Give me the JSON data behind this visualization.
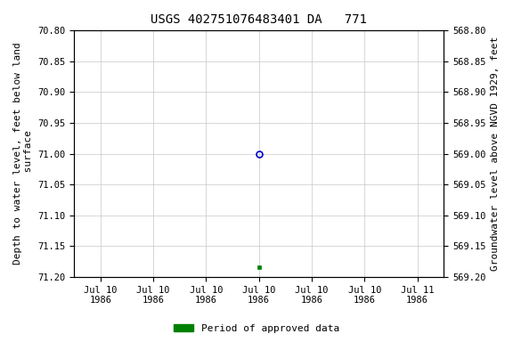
{
  "title": "USGS 402751076483401 DA   771",
  "ylabel_left": "Depth to water level, feet below land\n surface",
  "ylabel_right": "Groundwater level above NGVD 1929, feet",
  "ylim_left": [
    70.8,
    71.2
  ],
  "ylim_right": [
    569.2,
    568.8
  ],
  "yticks_left": [
    70.8,
    70.85,
    70.9,
    70.95,
    71.0,
    71.05,
    71.1,
    71.15,
    71.2
  ],
  "yticks_right": [
    569.2,
    569.15,
    569.1,
    569.05,
    569.0,
    568.95,
    568.9,
    568.85,
    568.8
  ],
  "data_point_open_value": 71.0,
  "data_point_filled_value": 71.185,
  "legend_label": "Period of approved data",
  "legend_color": "#008000",
  "bg_color": "#ffffff",
  "grid_color": "#c8c8c8",
  "open_marker_color": "#0000cc",
  "filled_marker_color": "#008000",
  "title_fontsize": 10,
  "tick_fontsize": 7.5,
  "label_fontsize": 8
}
